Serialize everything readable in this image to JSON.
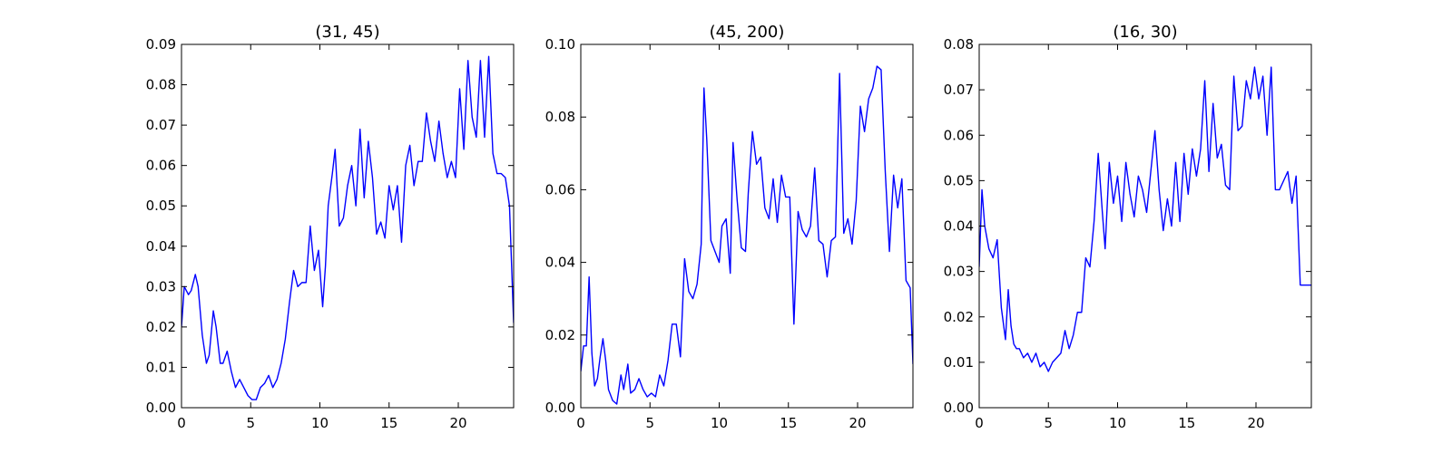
{
  "line_color": "#0000ff",
  "chart_data": [
    {
      "type": "line",
      "title": "(31, 45)",
      "xlabel": "",
      "ylabel": "",
      "xlim": [
        0,
        24
      ],
      "ylim": [
        0,
        0.09
      ],
      "xticks": [
        "0",
        "5",
        "10",
        "15",
        "20"
      ],
      "yticks": [
        "0.00",
        "0.01",
        "0.02",
        "0.03",
        "0.04",
        "0.05",
        "0.06",
        "0.07",
        "0.08",
        "0.09"
      ],
      "grid": false,
      "series": [
        {
          "color": "#0000ff",
          "x": [
            0,
            0.2,
            0.5,
            0.7,
            1.0,
            1.2,
            1.5,
            1.8,
            2.0,
            2.3,
            2.5,
            2.8,
            3.0,
            3.3,
            3.6,
            3.9,
            4.2,
            4.5,
            4.8,
            5.1,
            5.4,
            5.7,
            6.0,
            6.3,
            6.6,
            6.9,
            7.2,
            7.5,
            7.8,
            8.1,
            8.4,
            8.7,
            9.0,
            9.3,
            9.6,
            9.9,
            10.2,
            10.4,
            10.6,
            10.9,
            11.1,
            11.4,
            11.7,
            12.0,
            12.3,
            12.6,
            12.9,
            13.2,
            13.5,
            13.8,
            14.1,
            14.4,
            14.7,
            15.0,
            15.3,
            15.6,
            15.9,
            16.2,
            16.5,
            16.8,
            17.1,
            17.4,
            17.7,
            18.0,
            18.3,
            18.6,
            18.9,
            19.2,
            19.5,
            19.8,
            20.1,
            20.4,
            20.7,
            21.0,
            21.3,
            21.6,
            21.9,
            22.2,
            22.5,
            22.8,
            23.1,
            23.4,
            23.7,
            24.0
          ],
          "values": [
            0.02,
            0.03,
            0.028,
            0.029,
            0.033,
            0.03,
            0.018,
            0.011,
            0.013,
            0.024,
            0.02,
            0.011,
            0.011,
            0.014,
            0.009,
            0.005,
            0.007,
            0.005,
            0.003,
            0.002,
            0.002,
            0.005,
            0.006,
            0.008,
            0.005,
            0.007,
            0.011,
            0.017,
            0.026,
            0.034,
            0.03,
            0.031,
            0.031,
            0.045,
            0.034,
            0.039,
            0.025,
            0.035,
            0.05,
            0.058,
            0.064,
            0.045,
            0.047,
            0.055,
            0.06,
            0.05,
            0.069,
            0.052,
            0.066,
            0.057,
            0.043,
            0.046,
            0.042,
            0.055,
            0.049,
            0.055,
            0.041,
            0.06,
            0.065,
            0.055,
            0.061,
            0.061,
            0.073,
            0.066,
            0.061,
            0.071,
            0.063,
            0.057,
            0.061,
            0.057,
            0.079,
            0.064,
            0.086,
            0.072,
            0.067,
            0.086,
            0.067,
            0.087,
            0.063,
            0.058,
            0.058,
            0.057,
            0.05,
            0.021
          ]
        }
      ]
    },
    {
      "type": "line",
      "title": "(45, 200)",
      "xlabel": "",
      "ylabel": "",
      "xlim": [
        0,
        24
      ],
      "ylim": [
        0,
        0.1
      ],
      "xticks": [
        "0",
        "5",
        "10",
        "15",
        "20"
      ],
      "yticks": [
        "0.00",
        "0.02",
        "0.04",
        "0.06",
        "0.08",
        "0.10"
      ],
      "grid": false,
      "series": [
        {
          "color": "#0000ff",
          "x": [
            0,
            0.2,
            0.4,
            0.6,
            0.8,
            1.0,
            1.2,
            1.4,
            1.6,
            1.8,
            2.0,
            2.3,
            2.6,
            2.9,
            3.1,
            3.4,
            3.6,
            3.9,
            4.2,
            4.5,
            4.8,
            5.1,
            5.4,
            5.7,
            6.0,
            6.3,
            6.6,
            6.9,
            7.2,
            7.5,
            7.8,
            8.1,
            8.4,
            8.7,
            8.9,
            9.1,
            9.4,
            9.7,
            10.0,
            10.2,
            10.5,
            10.8,
            11.0,
            11.3,
            11.6,
            11.9,
            12.1,
            12.4,
            12.7,
            13.0,
            13.3,
            13.6,
            13.9,
            14.2,
            14.5,
            14.8,
            15.1,
            15.4,
            15.7,
            16.0,
            16.3,
            16.6,
            16.9,
            17.2,
            17.5,
            17.8,
            18.1,
            18.4,
            18.7,
            19.0,
            19.3,
            19.6,
            19.9,
            20.2,
            20.5,
            20.8,
            21.1,
            21.4,
            21.7,
            22.0,
            22.3,
            22.6,
            22.9,
            23.2,
            23.5,
            23.8,
            24.0
          ],
          "values": [
            0.01,
            0.017,
            0.017,
            0.036,
            0.015,
            0.006,
            0.008,
            0.014,
            0.019,
            0.013,
            0.005,
            0.002,
            0.001,
            0.009,
            0.005,
            0.012,
            0.004,
            0.005,
            0.008,
            0.005,
            0.003,
            0.004,
            0.003,
            0.009,
            0.006,
            0.013,
            0.023,
            0.023,
            0.014,
            0.041,
            0.032,
            0.03,
            0.034,
            0.045,
            0.088,
            0.074,
            0.046,
            0.043,
            0.04,
            0.05,
            0.052,
            0.037,
            0.073,
            0.057,
            0.044,
            0.043,
            0.059,
            0.076,
            0.067,
            0.069,
            0.055,
            0.052,
            0.063,
            0.051,
            0.064,
            0.058,
            0.058,
            0.023,
            0.054,
            0.049,
            0.047,
            0.05,
            0.066,
            0.046,
            0.045,
            0.036,
            0.046,
            0.047,
            0.092,
            0.048,
            0.052,
            0.045,
            0.057,
            0.083,
            0.076,
            0.085,
            0.088,
            0.094,
            0.093,
            0.065,
            0.043,
            0.064,
            0.055,
            0.063,
            0.035,
            0.033,
            0.012
          ]
        }
      ]
    },
    {
      "type": "line",
      "title": "(16, 30)",
      "xlabel": "",
      "ylabel": "",
      "xlim": [
        0,
        24
      ],
      "ylim": [
        0,
        0.08
      ],
      "xticks": [
        "0",
        "5",
        "10",
        "15",
        "20"
      ],
      "yticks": [
        "0.00",
        "0.01",
        "0.02",
        "0.03",
        "0.04",
        "0.05",
        "0.06",
        "0.07",
        "0.08"
      ],
      "grid": false,
      "series": [
        {
          "color": "#0000ff",
          "x": [
            0,
            0.2,
            0.4,
            0.7,
            1.0,
            1.3,
            1.6,
            1.9,
            2.1,
            2.3,
            2.5,
            2.7,
            2.9,
            3.2,
            3.5,
            3.8,
            4.1,
            4.4,
            4.7,
            5.0,
            5.3,
            5.6,
            5.9,
            6.2,
            6.5,
            6.8,
            7.1,
            7.4,
            7.7,
            8.0,
            8.3,
            8.6,
            8.9,
            9.1,
            9.4,
            9.7,
            10.0,
            10.3,
            10.6,
            10.9,
            11.2,
            11.5,
            11.8,
            12.1,
            12.4,
            12.7,
            13.0,
            13.3,
            13.6,
            13.9,
            14.2,
            14.5,
            14.8,
            15.1,
            15.4,
            15.7,
            16.0,
            16.3,
            16.6,
            16.9,
            17.2,
            17.5,
            17.8,
            18.1,
            18.4,
            18.7,
            19.0,
            19.3,
            19.6,
            19.9,
            20.2,
            20.5,
            20.8,
            21.1,
            21.4,
            21.7,
            22.0,
            22.3,
            22.6,
            22.9,
            23.2,
            23.5,
            23.8,
            24.0
          ],
          "values": [
            0.031,
            0.048,
            0.04,
            0.035,
            0.033,
            0.037,
            0.022,
            0.015,
            0.026,
            0.018,
            0.014,
            0.013,
            0.013,
            0.011,
            0.012,
            0.01,
            0.012,
            0.009,
            0.01,
            0.008,
            0.01,
            0.011,
            0.012,
            0.017,
            0.013,
            0.016,
            0.021,
            0.021,
            0.033,
            0.031,
            0.041,
            0.056,
            0.043,
            0.035,
            0.054,
            0.045,
            0.051,
            0.041,
            0.054,
            0.047,
            0.042,
            0.051,
            0.048,
            0.043,
            0.052,
            0.061,
            0.048,
            0.039,
            0.046,
            0.04,
            0.054,
            0.041,
            0.056,
            0.047,
            0.057,
            0.051,
            0.057,
            0.072,
            0.052,
            0.067,
            0.055,
            0.058,
            0.049,
            0.048,
            0.073,
            0.061,
            0.062,
            0.072,
            0.068,
            0.075,
            0.068,
            0.073,
            0.06,
            0.075,
            0.048,
            0.048,
            0.05,
            0.052,
            0.045,
            0.051,
            0.027,
            0.027,
            0.027,
            0.027
          ]
        }
      ]
    }
  ]
}
